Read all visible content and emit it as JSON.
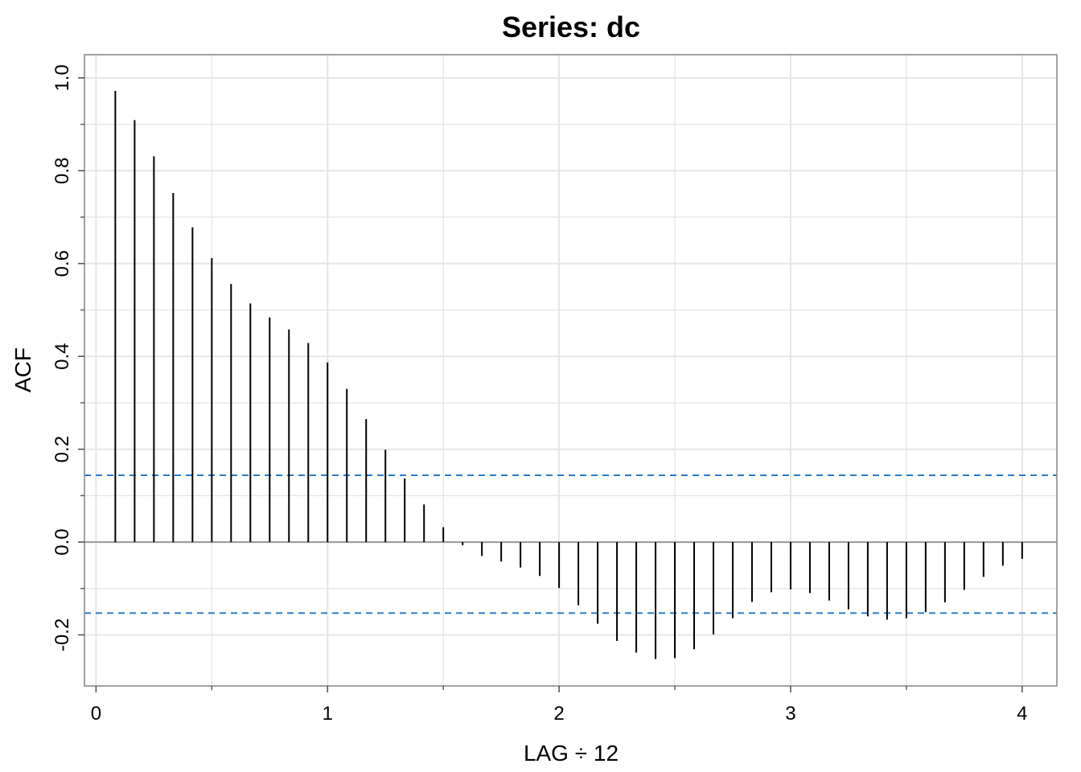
{
  "chart_data": {
    "type": "bar",
    "title": "Series:  dc",
    "xlabel": "LAG ÷ 12",
    "ylabel": "ACF",
    "xlim": [
      -0.05,
      4.15
    ],
    "ylim": [
      -0.31,
      1.05
    ],
    "x_ticks": [
      0,
      1,
      2,
      3,
      4
    ],
    "x_tick_labels": [
      "0",
      "1",
      "2",
      "3",
      "4"
    ],
    "y_ticks": [
      -0.2,
      0.0,
      0.2,
      0.4,
      0.6,
      0.8,
      1.0
    ],
    "y_tick_labels": [
      "-0.2",
      "0.0",
      "0.2",
      "0.4",
      "0.6",
      "0.8",
      "1.0"
    ],
    "grid": true,
    "confidence_bounds": [
      0.144,
      -0.153
    ],
    "colors": {
      "bars": "#000000",
      "confidence": "#2b7bc8",
      "grid": "#e6e6e6",
      "zero_line": "#999999",
      "frame": "#8c8c8c"
    },
    "lags": [
      0.0833,
      0.1667,
      0.25,
      0.3333,
      0.4167,
      0.5,
      0.5833,
      0.6667,
      0.75,
      0.8333,
      0.9167,
      1.0,
      1.0833,
      1.1667,
      1.25,
      1.3333,
      1.4167,
      1.5,
      1.5833,
      1.6667,
      1.75,
      1.8333,
      1.9167,
      2.0,
      2.0833,
      2.1667,
      2.25,
      2.3333,
      2.4167,
      2.5,
      2.5833,
      2.6667,
      2.75,
      2.8333,
      2.9167,
      3.0,
      3.0833,
      3.1667,
      3.25,
      3.3333,
      3.4167,
      3.5,
      3.5833,
      3.6667,
      3.75,
      3.8333,
      3.9167,
      4.0
    ],
    "values": [
      0.972,
      0.909,
      0.831,
      0.752,
      0.678,
      0.612,
      0.556,
      0.514,
      0.484,
      0.458,
      0.429,
      0.387,
      0.33,
      0.265,
      0.199,
      0.137,
      0.081,
      0.032,
      -0.007,
      -0.03,
      -0.042,
      -0.055,
      -0.073,
      -0.099,
      -0.136,
      -0.176,
      -0.213,
      -0.238,
      -0.252,
      -0.25,
      -0.231,
      -0.199,
      -0.164,
      -0.129,
      -0.108,
      -0.102,
      -0.11,
      -0.126,
      -0.145,
      -0.16,
      -0.167,
      -0.164,
      -0.151,
      -0.13,
      -0.103,
      -0.075,
      -0.051,
      -0.036
    ]
  }
}
